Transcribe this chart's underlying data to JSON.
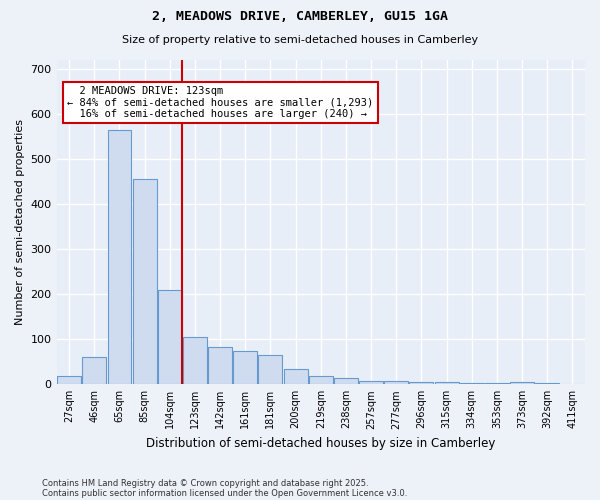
{
  "title1": "2, MEADOWS DRIVE, CAMBERLEY, GU15 1GA",
  "title2": "Size of property relative to semi-detached houses in Camberley",
  "xlabel": "Distribution of semi-detached houses by size in Camberley",
  "ylabel": "Number of semi-detached properties",
  "bar_color": "#cfdcf0",
  "bar_edge_color": "#6699cc",
  "bg_color": "#e8eef8",
  "grid_color": "#d8dff0",
  "red_line_x": 5,
  "marker_label": "2 MEADOWS DRIVE: 123sqm",
  "pct_smaller": "84% of semi-detached houses are smaller (1,293)",
  "pct_larger": "16% of semi-detached houses are larger (240)",
  "categories": [
    "27sqm",
    "46sqm",
    "65sqm",
    "85sqm",
    "104sqm",
    "123sqm",
    "142sqm",
    "161sqm",
    "181sqm",
    "200sqm",
    "219sqm",
    "238sqm",
    "257sqm",
    "277sqm",
    "296sqm",
    "315sqm",
    "334sqm",
    "353sqm",
    "373sqm",
    "392sqm",
    "411sqm"
  ],
  "values": [
    18,
    60,
    565,
    455,
    210,
    105,
    83,
    75,
    65,
    35,
    18,
    15,
    7,
    8,
    5,
    5,
    3,
    3,
    5,
    3,
    1
  ],
  "ylim": [
    0,
    720
  ],
  "yticks": [
    0,
    100,
    200,
    300,
    400,
    500,
    600,
    700
  ],
  "footnote1": "Contains HM Land Registry data © Crown copyright and database right 2025.",
  "footnote2": "Contains public sector information licensed under the Open Government Licence v3.0.",
  "annotation_box_color": "#ffffff",
  "annotation_box_edge": "#cc0000",
  "red_line_color": "#cc0000",
  "fig_bg": "#edf1f8"
}
